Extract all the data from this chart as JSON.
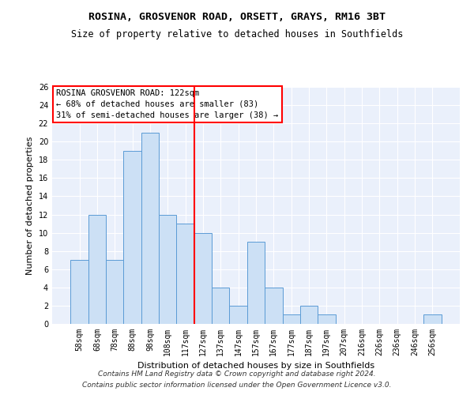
{
  "title1": "ROSINA, GROSVENOR ROAD, ORSETT, GRAYS, RM16 3BT",
  "title2": "Size of property relative to detached houses in Southfields",
  "xlabel": "Distribution of detached houses by size in Southfields",
  "ylabel": "Number of detached properties",
  "categories": [
    "58sqm",
    "68sqm",
    "78sqm",
    "88sqm",
    "98sqm",
    "108sqm",
    "117sqm",
    "127sqm",
    "137sqm",
    "147sqm",
    "157sqm",
    "167sqm",
    "177sqm",
    "187sqm",
    "197sqm",
    "207sqm",
    "216sqm",
    "226sqm",
    "236sqm",
    "246sqm",
    "256sqm"
  ],
  "values": [
    7,
    12,
    7,
    19,
    21,
    12,
    11,
    10,
    4,
    2,
    9,
    4,
    1,
    2,
    1,
    0,
    0,
    0,
    0,
    0,
    1
  ],
  "bar_color": "#cce0f5",
  "bar_edgecolor": "#5b9bd5",
  "vline_color": "red",
  "ylim": [
    0,
    26
  ],
  "yticks": [
    0,
    2,
    4,
    6,
    8,
    10,
    12,
    14,
    16,
    18,
    20,
    22,
    24,
    26
  ],
  "annotation_text": "ROSINA GROSVENOR ROAD: 122sqm\n← 68% of detached houses are smaller (83)\n31% of semi-detached houses are larger (38) →",
  "annotation_box_color": "white",
  "annotation_box_edgecolor": "red",
  "footer1": "Contains HM Land Registry data © Crown copyright and database right 2024.",
  "footer2": "Contains public sector information licensed under the Open Government Licence v3.0.",
  "background_color": "#eaf0fb",
  "grid_color": "white",
  "title_fontsize": 9.5,
  "subtitle_fontsize": 8.5,
  "axis_label_fontsize": 8,
  "tick_fontsize": 7,
  "annotation_fontsize": 7.5,
  "footer_fontsize": 6.5
}
